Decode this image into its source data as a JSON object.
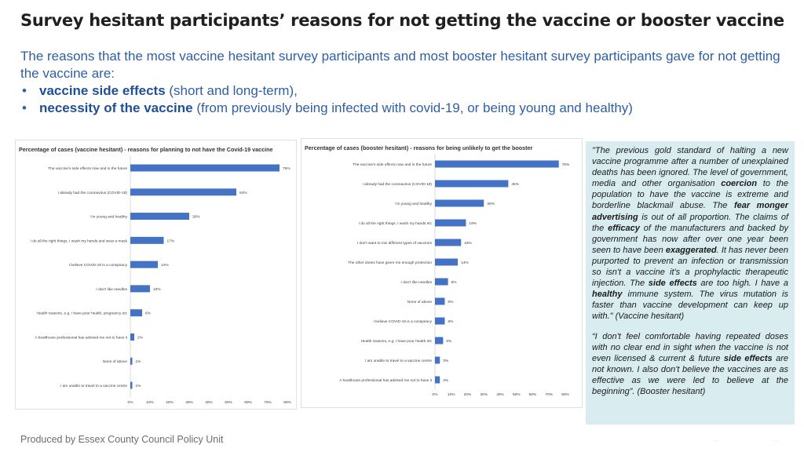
{
  "page": {
    "title": "Survey hesitant participants’ reasons for not getting the vaccine or booster vaccine",
    "intro": {
      "text": "The reasons that the most vaccine hesitant survey participants and most booster hesitant survey participants gave for not getting the vaccine are:",
      "bullets": [
        {
          "bold": "vaccine side effects",
          "rest": " (short and long-term),"
        },
        {
          "bold": "necessity of the vaccine",
          "rest": " (from previously being infected with covid-19, or being young and healthy)"
        }
      ]
    },
    "footer": "Produced by Essex County Council Policy Unit",
    "accent_color": "#2e5fa5",
    "bar_color": "#4472c4",
    "quote_bg": "#d9edf0"
  },
  "chart_data": [
    {
      "type": "bar",
      "orientation": "horizontal",
      "title": "Percentage of cases (vaccine hesitant) - reasons for planning to not have the Covid-19 vaccine",
      "categories": [
        "The vaccine's side effects now and in the future",
        "I already had the coronavirus (COVID-19)",
        "I'm young and healthy",
        "I do all the right things. I wash my hands and wear a mask",
        "I believe COVID-19 is a conspiracy",
        "I don't like needles",
        "Health reasons, e.g. I have poor health, pregnancy etc",
        "A healthcare professional has advised me not to have it",
        "None of above",
        "I am unable to travel to a vaccine centre"
      ],
      "values": [
        76,
        54,
        30,
        17,
        14,
        10,
        6,
        2,
        1,
        1
      ],
      "value_labels": [
        "76%",
        "54%",
        "30%",
        "17%",
        "14%",
        "10%",
        "6%",
        "2%",
        "1%",
        "1%"
      ],
      "xlim": [
        0,
        80
      ],
      "ticks": [
        "0%",
        "10%",
        "20%",
        "30%",
        "40%",
        "50%",
        "60%",
        "70%",
        "80%"
      ],
      "xlabel": "",
      "ylabel": "",
      "grid": false,
      "legend": "none"
    },
    {
      "type": "bar",
      "orientation": "horizontal",
      "title": "Percentage of cases (booster hesitant) - reasons for being unlikely to get the booster",
      "categories": [
        "The vaccine's side effects now and in the future",
        "I already had the coronavirus (COVID-19)",
        "I'm young and healthy",
        "I do all the right things. I wash my hands etc",
        "I don't want to mix different types of vaccines",
        "The other doses have given me enough protection",
        "I don't like needles",
        "None of above",
        "I believe COVID-19 is a conspiracy",
        "Health reasons, e.g. I have poor health etc",
        "I am unable to travel to a vaccine centre",
        "A healthcare professional has advised me not to have it"
      ],
      "values": [
        76,
        45,
        30,
        19,
        16,
        14,
        8,
        6,
        6,
        5,
        3,
        3
      ],
      "value_labels": [
        "76%",
        "45%",
        "30%",
        "19%",
        "16%",
        "14%",
        "8%",
        "6%",
        "6%",
        "5%",
        "3%",
        "3%"
      ],
      "xlim": [
        0,
        80
      ],
      "ticks": [
        "0%",
        "10%",
        "20%",
        "30%",
        "40%",
        "50%",
        "60%",
        "70%",
        "80%"
      ],
      "xlabel": "",
      "ylabel": "",
      "grid": false,
      "legend": "none"
    }
  ],
  "quotes": [
    {
      "segments": [
        {
          "t": "\"The previous gold standard of halting a new vaccine programme after a number of unexplained deaths has been ignored. The level of government, media and other organisation "
        },
        {
          "t": "coercion",
          "b": true
        },
        {
          "t": " to the population to have the vaccine is extreme and borderline blackmail abuse.   The "
        },
        {
          "t": "fear monger advertising",
          "b": true
        },
        {
          "t": " is out of all proportion.  The claims of the "
        },
        {
          "t": "efficacy",
          "b": true
        },
        {
          "t": " of the manufacturers and backed by government has now after over one year been seen to have been "
        },
        {
          "t": "exaggerated",
          "b": true
        },
        {
          "t": ".  It has never been purported to prevent an infection or transmission so isn't a vaccine it's a prophylactic therapeutic injection.   The "
        },
        {
          "t": "side effects",
          "b": true
        },
        {
          "t": " are too high.  I have a "
        },
        {
          "t": "healthy",
          "b": true
        },
        {
          "t": " immune system. The virus mutation is faster than vaccine development can keep up with.\" (Vaccine hesitant)"
        }
      ]
    },
    {
      "segments": [
        {
          "t": "“I don't feel comfortable having repeated doses with no clear end in sight when the vaccine is not even licensed & current & future "
        },
        {
          "t": "side effects",
          "b": true
        },
        {
          "t": " are not known. I also don't believe the vaccines are as effective as we were led to believe at the beginning”. (Booster hesitant)"
        }
      ]
    }
  ]
}
